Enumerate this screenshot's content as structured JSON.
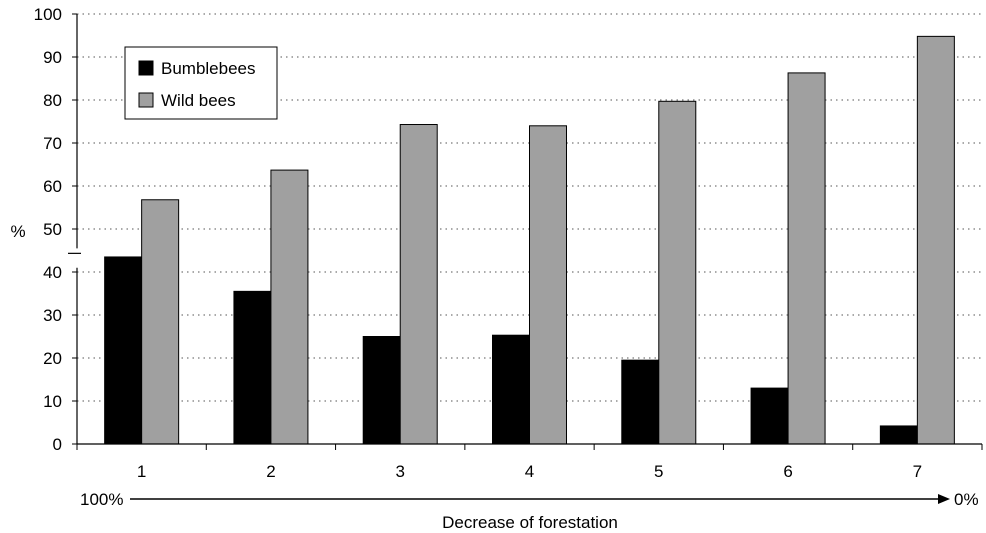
{
  "chart_data": {
    "type": "bar",
    "categories": [
      "1",
      "2",
      "3",
      "4",
      "5",
      "6",
      "7"
    ],
    "series": [
      {
        "name": "Bumblebees",
        "color": "#000000",
        "values": [
          43.5,
          35.5,
          25,
          25.3,
          19.5,
          13,
          4.2
        ]
      },
      {
        "name": "Wild bees",
        "color": "#a0a0a0",
        "values": [
          56.8,
          63.7,
          74.3,
          74,
          79.7,
          86.3,
          94.8
        ]
      }
    ],
    "title": "",
    "xlabel": "Decrease of forestation",
    "ylabel": "%",
    "ylim": [
      0,
      100
    ],
    "yticks": [
      "0",
      "10",
      "20",
      "30",
      "40",
      "50",
      "60",
      "70",
      "80",
      "90",
      "100"
    ],
    "y_axis_break": true,
    "grid": "dotted horizontal",
    "legend_position": "top-left",
    "arrow_start_label": "100%",
    "arrow_end_label": "0%"
  }
}
